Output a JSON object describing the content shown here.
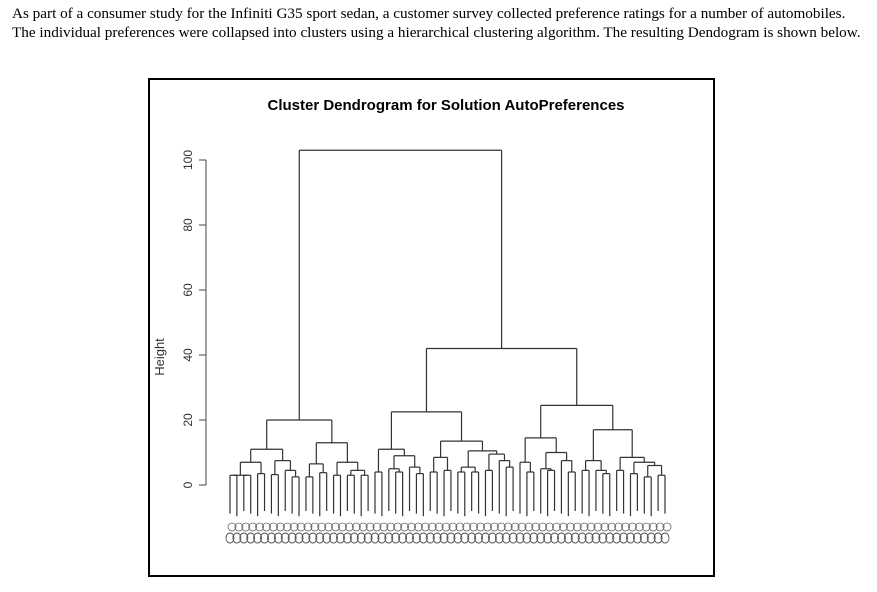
{
  "document": {
    "paragraph": "As part of a consumer study for the Infiniti G35 sport sedan, a customer survey collected preference ratings for a number of automobiles. The individual preferences were collapsed into clusters using a hierarchical clustering algorithm. The resulting Dendogram is shown below."
  },
  "chart_data": {
    "type": "dendrogram",
    "title": "Cluster Dendrogram for Solution AutoPreferences",
    "ylabel": "Height",
    "ylim": [
      0,
      105
    ],
    "yticks": [
      "0",
      "20",
      "40",
      "60",
      "80",
      "100"
    ],
    "grid": false,
    "tree": [
      103,
      [
        20,
        [
          11,
          [
            7,
            [
              3,
              [
                3,
                null,
                null
              ],
              [
                3,
                null,
                null
              ]
            ],
            [
              3.5,
              null,
              null
            ]
          ],
          [
            7.5,
            [
              3.2,
              null,
              null
            ],
            [
              4.5,
              null,
              [
                2.5,
                null,
                null
              ]
            ]
          ]
        ],
        [
          13,
          [
            6.5,
            [
              2.5,
              null,
              null
            ],
            [
              3.8,
              null,
              null
            ]
          ],
          [
            7,
            [
              3,
              null,
              null
            ],
            [
              4.5,
              [
                3,
                null,
                null
              ],
              [
                3,
                null,
                null
              ]
            ]
          ]
        ]
      ],
      [
        42,
        [
          22.5,
          [
            11,
            [
              4,
              null,
              null
            ],
            [
              9,
              [
                5,
                null,
                [
                  4,
                  null,
                  null
                ]
              ],
              [
                5.5,
                null,
                [
                  3.5,
                  null,
                  null
                ]
              ]
            ]
          ],
          [
            13.5,
            [
              8.5,
              [
                4,
                null,
                null
              ],
              [
                4.5,
                null,
                null
              ]
            ],
            [
              10.5,
              [
                5.5,
                [
                  4,
                  null,
                  null
                ],
                [
                  4,
                  null,
                  null
                ]
              ],
              [
                9.5,
                [
                  4.5,
                  null,
                  null
                ],
                [
                  7.5,
                  null,
                  [
                    5.5,
                    null,
                    null
                  ]
                ]
              ]
            ]
          ]
        ],
        [
          24.5,
          [
            14.5,
            [
              7,
              null,
              [
                4,
                null,
                null
              ]
            ],
            [
              10,
              [
                5,
                null,
                [
                  4.5,
                  null,
                  null
                ]
              ],
              [
                7.5,
                null,
                [
                  4,
                  null,
                  null
                ]
              ]
            ]
          ],
          [
            17,
            [
              7.5,
              [
                4.5,
                null,
                null
              ],
              [
                4.5,
                null,
                [
                  3.5,
                  null,
                  null
                ]
              ]
            ],
            [
              8.5,
              [
                4.5,
                null,
                null
              ],
              [
                7,
                [
                  3.5,
                  null,
                  null
                ],
                [
                  6,
                  [
                    2.5,
                    null,
                    null
                  ],
                  [
                    3,
                    null,
                    null
                  ]
                ]
              ]
            ]
          ]
        ]
      ]
    ]
  }
}
